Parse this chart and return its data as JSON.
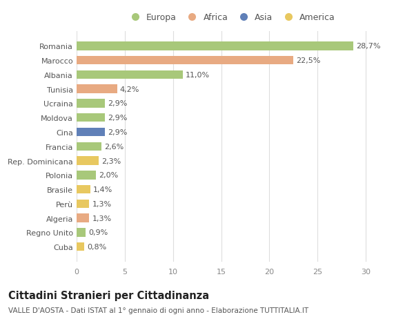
{
  "categories": [
    "Romania",
    "Marocco",
    "Albania",
    "Tunisia",
    "Ucraina",
    "Moldova",
    "Cina",
    "Francia",
    "Rep. Dominicana",
    "Polonia",
    "Brasile",
    "Perù",
    "Algeria",
    "Regno Unito",
    "Cuba"
  ],
  "values": [
    28.7,
    22.5,
    11.0,
    4.2,
    2.9,
    2.9,
    2.9,
    2.6,
    2.3,
    2.0,
    1.4,
    1.3,
    1.3,
    0.9,
    0.8
  ],
  "labels": [
    "28,7%",
    "22,5%",
    "11,0%",
    "4,2%",
    "2,9%",
    "2,9%",
    "2,9%",
    "2,6%",
    "2,3%",
    "2,0%",
    "1,4%",
    "1,3%",
    "1,3%",
    "0,9%",
    "0,8%"
  ],
  "continents": [
    "Europa",
    "Africa",
    "Europa",
    "Africa",
    "Europa",
    "Europa",
    "Asia",
    "Europa",
    "America",
    "Europa",
    "America",
    "America",
    "Africa",
    "Europa",
    "America"
  ],
  "colors": {
    "Europa": "#a8c87a",
    "Africa": "#e8aa82",
    "Asia": "#6080b8",
    "America": "#e8c860"
  },
  "legend_order": [
    "Europa",
    "Africa",
    "Asia",
    "America"
  ],
  "title": "Cittadini Stranieri per Cittadinanza",
  "subtitle": "VALLE D'AOSTA - Dati ISTAT al 1° gennaio di ogni anno - Elaborazione TUTTITALIA.IT",
  "xlim": [
    0,
    32
  ],
  "xticks": [
    0,
    5,
    10,
    15,
    20,
    25,
    30
  ],
  "background_color": "#ffffff",
  "grid_color": "#dddddd",
  "bar_height": 0.6,
  "label_fontsize": 8.0,
  "tick_fontsize": 8.0,
  "title_fontsize": 10.5,
  "subtitle_fontsize": 7.5
}
